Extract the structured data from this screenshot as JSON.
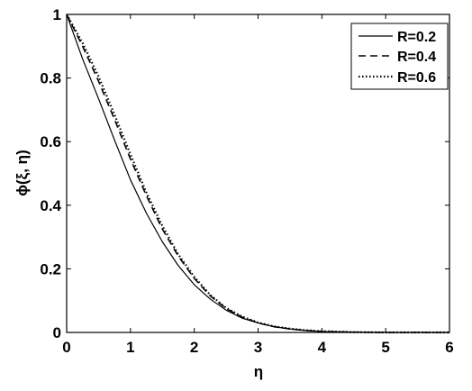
{
  "chart_data": {
    "type": "line",
    "title": "",
    "xlabel": "η",
    "ylabel": "ϕ(ξ, η)",
    "xlim": [
      0,
      6
    ],
    "ylim": [
      0,
      1
    ],
    "x_ticks": [
      "0",
      "1",
      "2",
      "3",
      "4",
      "5",
      "6"
    ],
    "y_ticks": [
      "0",
      "0.2",
      "0.4",
      "0.6",
      "0.8",
      "1"
    ],
    "grid": false,
    "legend_position": "top-right",
    "x": [
      0,
      0.25,
      0.5,
      0.75,
      1,
      1.25,
      1.5,
      1.75,
      2,
      2.25,
      2.5,
      2.75,
      3,
      3.25,
      3.5,
      3.75,
      4,
      4.5,
      5,
      5.5,
      6
    ],
    "series": [
      {
        "name": "R=0.2",
        "style": "solid",
        "values": [
          1.0,
          0.86,
          0.735,
          0.605,
          0.48,
          0.375,
          0.285,
          0.21,
          0.15,
          0.105,
          0.07,
          0.045,
          0.03,
          0.018,
          0.011,
          0.006,
          0.003,
          0.001,
          0.0,
          0.0,
          0.0
        ]
      },
      {
        "name": "R=0.4",
        "style": "dashed",
        "values": [
          1.0,
          0.9,
          0.79,
          0.67,
          0.545,
          0.43,
          0.325,
          0.24,
          0.17,
          0.115,
          0.075,
          0.048,
          0.03,
          0.018,
          0.011,
          0.006,
          0.003,
          0.001,
          0.0,
          0.0,
          0.0
        ]
      },
      {
        "name": "R=0.6",
        "style": "dotted",
        "values": [
          1.0,
          0.91,
          0.805,
          0.685,
          0.56,
          0.44,
          0.335,
          0.245,
          0.175,
          0.118,
          0.077,
          0.05,
          0.031,
          0.019,
          0.012,
          0.007,
          0.004,
          0.001,
          0.0,
          0.0,
          0.0
        ]
      }
    ]
  }
}
